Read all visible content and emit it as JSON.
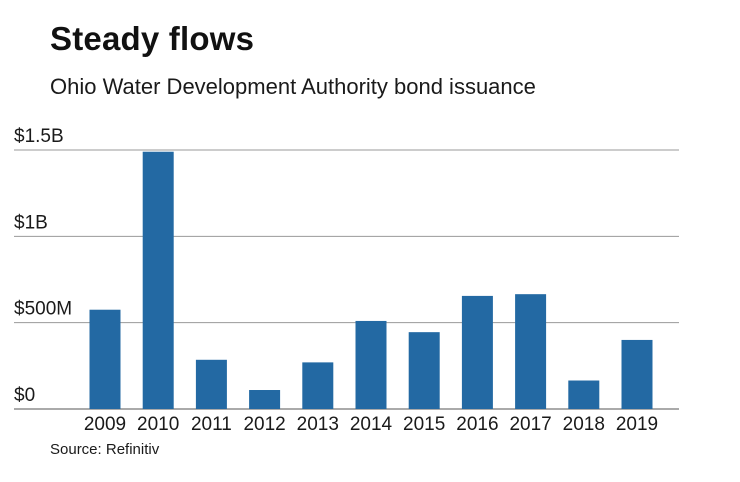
{
  "header": {
    "title": "Steady flows",
    "subtitle": "Ohio Water Development Authority bond issuance"
  },
  "footer": {
    "source": "Source: Refinitiv"
  },
  "colors": {
    "bar": "#2369a3",
    "grid": "#9a9a9a",
    "axis": "#555555"
  },
  "chart_data": {
    "type": "bar",
    "title": "Steady flows",
    "subtitle": "Ohio Water Development Authority bond issuance",
    "xlabel": "",
    "ylabel": "",
    "categories": [
      "2009",
      "2010",
      "2011",
      "2012",
      "2013",
      "2014",
      "2015",
      "2016",
      "2017",
      "2018",
      "2019"
    ],
    "values": [
      575,
      1490,
      285,
      110,
      270,
      510,
      445,
      655,
      665,
      165,
      400
    ],
    "unit": "$ millions",
    "ylim": [
      0,
      1500
    ],
    "yticks": [
      0,
      500,
      1000,
      1500
    ],
    "ytick_labels": [
      "$0",
      "$500M",
      "$1B",
      "$1.5B"
    ],
    "grid": true,
    "legend": "none"
  }
}
